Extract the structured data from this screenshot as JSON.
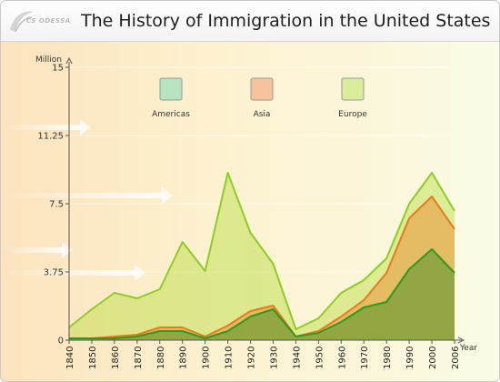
{
  "header": {
    "logo_text": "CS ODESSA"
  },
  "chart_data": {
    "type": "area",
    "title": "The History of Immigration in the United States",
    "ylabel": "Million",
    "xlabel": "Year",
    "ylim": [
      0,
      15
    ],
    "yticks": [
      "0",
      "3.75",
      "7.5",
      "11.25",
      "15"
    ],
    "x": [
      "1840",
      "1850",
      "1860",
      "1870",
      "1880",
      "1890",
      "1900",
      "1910",
      "1920",
      "1930",
      "1940",
      "1950",
      "1960",
      "1970",
      "1980",
      "1990",
      "2000",
      "2006"
    ],
    "legend_position": "top",
    "stacked": true,
    "series": [
      {
        "name": "Americas",
        "values": [
          0.1,
          0.1,
          0.1,
          0.2,
          0.5,
          0.5,
          0.1,
          0.5,
          1.3,
          1.7,
          0.2,
          0.4,
          1.0,
          1.8,
          2.1,
          3.9,
          5.0,
          3.7
        ],
        "stroke": "#2f9a1e",
        "swatch": "#b7e3c0"
      },
      {
        "name": "Asia",
        "values": [
          0.0,
          0.0,
          0.1,
          0.1,
          0.2,
          0.2,
          0.1,
          0.3,
          0.3,
          0.2,
          0.0,
          0.1,
          0.3,
          0.4,
          1.6,
          2.8,
          2.9,
          2.4
        ],
        "stroke": "#e87a1e",
        "swatch": "#f7c39c"
      },
      {
        "name": "Europe",
        "values": [
          0.6,
          1.6,
          2.4,
          2.0,
          2.1,
          4.7,
          3.6,
          8.4,
          4.3,
          2.3,
          0.4,
          0.7,
          1.3,
          1.1,
          0.8,
          0.8,
          1.3,
          1.0
        ],
        "stroke": "#8ccd26",
        "swatch": "#d9ec9a"
      }
    ]
  }
}
